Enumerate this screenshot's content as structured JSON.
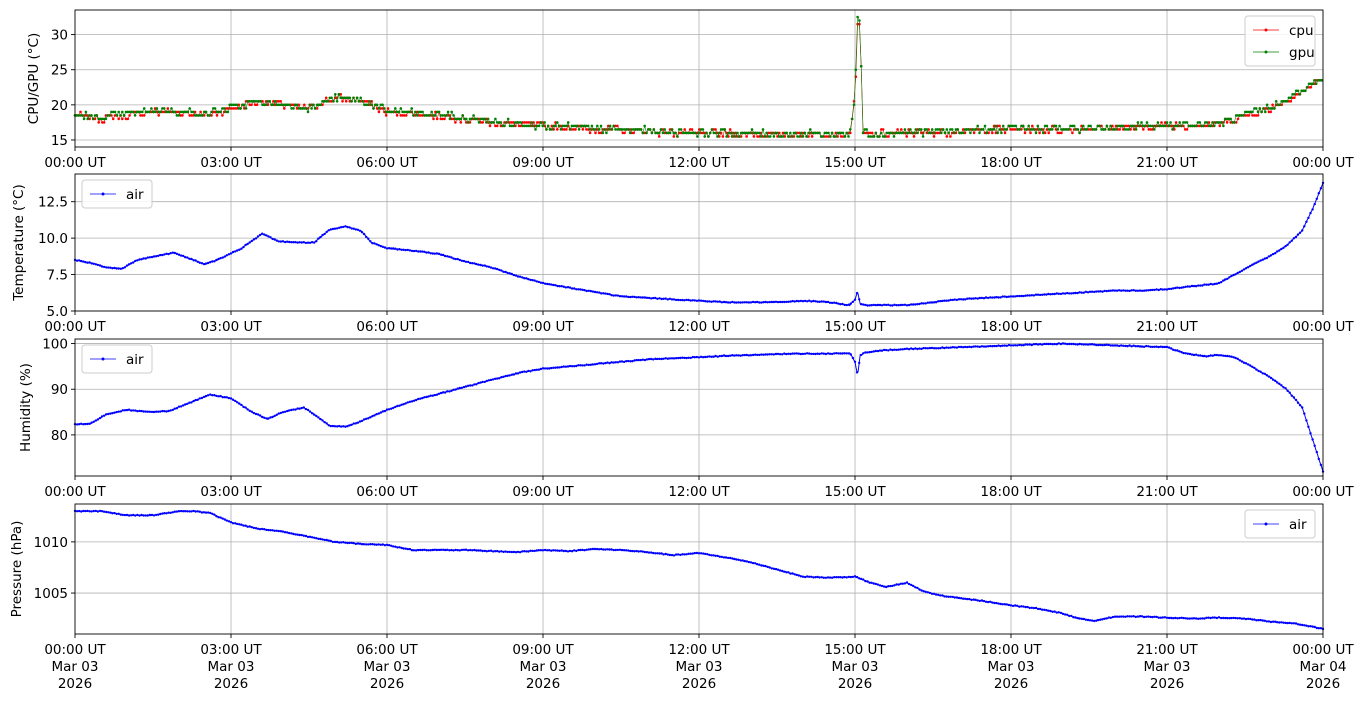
{
  "chart_data": [
    {
      "type": "line",
      "ylabel": "CPU/GPU (°C)",
      "ylim": [
        14,
        33.5
      ],
      "xlim": [
        "2026-03-03 00:00",
        "2026-03-04 00:00"
      ],
      "yticks": [
        15,
        20,
        25,
        30
      ],
      "x_tick_labels": [
        "00:00 UT",
        "03:00 UT",
        "06:00 UT",
        "09:00 UT",
        "12:00 UT",
        "15:00 UT",
        "18:00 UT",
        "21:00 UT",
        "00:00 UT"
      ],
      "grid": true,
      "legend_loc": "upper right",
      "series": [
        {
          "name": "cpu",
          "color": "#ff0000",
          "x_hours": [
            0,
            0.5,
            1,
            1.5,
            2,
            2.5,
            3,
            3.5,
            4,
            4.5,
            5,
            5.5,
            6,
            7,
            8,
            9,
            10,
            11,
            12,
            13,
            14,
            14.9,
            15.0,
            15.05,
            15.1,
            15.15,
            15.3,
            16,
            17,
            18,
            19,
            20,
            21,
            22,
            22.5,
            23,
            23.5,
            24
          ],
          "values": [
            18.6,
            18,
            18.5,
            19,
            19,
            18.5,
            19.5,
            20.5,
            20,
            19.5,
            21,
            20.5,
            19,
            18.5,
            17.5,
            17,
            16.5,
            16.2,
            16,
            15.8,
            15.8,
            15.8,
            21,
            32,
            31,
            16,
            15.8,
            16,
            16.2,
            16.5,
            16.5,
            16.7,
            17,
            17.2,
            18.5,
            19.5,
            21.5,
            23.8
          ]
        },
        {
          "name": "gpu",
          "color": "#008000",
          "x_hours": [
            0,
            0.5,
            1,
            1.5,
            2,
            2.5,
            3,
            3.5,
            4,
            4.5,
            5,
            5.5,
            6,
            7,
            8,
            9,
            10,
            11,
            12,
            13,
            14,
            14.9,
            15.0,
            15.05,
            15.1,
            15.15,
            15.3,
            16,
            17,
            18,
            19,
            20,
            21,
            22,
            22.5,
            23,
            23.5,
            24
          ],
          "values": [
            18.6,
            18.2,
            18.7,
            19.2,
            19.1,
            18.7,
            19.6,
            20.4,
            20.1,
            19.6,
            21,
            20.6,
            19.2,
            18.6,
            17.6,
            17.1,
            16.6,
            16.3,
            16.1,
            15.9,
            15.9,
            15.9,
            21.3,
            32.5,
            31.5,
            16.1,
            15.9,
            16.1,
            16.3,
            16.6,
            16.6,
            16.8,
            17.1,
            17.3,
            18.6,
            19.6,
            21.6,
            23.8
          ]
        }
      ]
    },
    {
      "type": "line",
      "ylabel": "Temperature (°C)",
      "ylim": [
        5,
        14.4
      ],
      "xlim": [
        "2026-03-03 00:00",
        "2026-03-04 00:00"
      ],
      "yticks": [
        5.0,
        7.5,
        10.0,
        12.5
      ],
      "ytick_labels": [
        "5.0",
        "7.5",
        "10.0",
        "12.5"
      ],
      "x_tick_labels": [
        "00:00 UT",
        "03:00 UT",
        "06:00 UT",
        "09:00 UT",
        "12:00 UT",
        "15:00 UT",
        "18:00 UT",
        "21:00 UT",
        "00:00 UT"
      ],
      "grid": true,
      "legend_loc": "upper left",
      "series": [
        {
          "name": "air",
          "color": "#0000ff",
          "x_hours": [
            0,
            0.3,
            0.6,
            0.9,
            1.2,
            1.6,
            1.9,
            2.2,
            2.5,
            2.8,
            3.2,
            3.6,
            3.9,
            4.2,
            4.6,
            4.9,
            5.2,
            5.5,
            5.7,
            6.0,
            6.6,
            7.0,
            7.5,
            8.0,
            8.5,
            9.0,
            9.5,
            10.0,
            10.5,
            11.0,
            11.5,
            12.0,
            12.5,
            13.0,
            13.5,
            14.0,
            14.5,
            14.9,
            15.0,
            15.05,
            15.1,
            15.2,
            15.5,
            16.0,
            16.5,
            17.0,
            17.5,
            18.0,
            18.5,
            19.0,
            19.5,
            20.0,
            20.5,
            21.0,
            21.5,
            22.0,
            22.5,
            23.0,
            23.3,
            23.6,
            23.8,
            24.0
          ],
          "values": [
            8.5,
            8.3,
            8.0,
            7.9,
            8.5,
            8.8,
            9.0,
            8.6,
            8.2,
            8.6,
            9.3,
            10.3,
            9.8,
            9.7,
            9.7,
            10.6,
            10.8,
            10.5,
            9.7,
            9.3,
            9.1,
            8.9,
            8.4,
            8.0,
            7.4,
            6.9,
            6.6,
            6.3,
            6.0,
            5.9,
            5.8,
            5.7,
            5.6,
            5.6,
            5.6,
            5.7,
            5.6,
            5.4,
            5.8,
            6.3,
            5.5,
            5.4,
            5.4,
            5.4,
            5.6,
            5.8,
            5.9,
            6.0,
            6.1,
            6.2,
            6.3,
            6.4,
            6.4,
            6.5,
            6.7,
            6.9,
            7.9,
            8.8,
            9.5,
            10.5,
            12.0,
            13.8
          ]
        }
      ]
    },
    {
      "type": "line",
      "ylabel": "Humidity (%)",
      "ylim": [
        71,
        101
      ],
      "xlim": [
        "2026-03-03 00:00",
        "2026-03-04 00:00"
      ],
      "yticks": [
        80,
        90,
        100
      ],
      "x_tick_labels": [
        "00:00 UT",
        "03:00 UT",
        "06:00 UT",
        "09:00 UT",
        "12:00 UT",
        "15:00 UT",
        "18:00 UT",
        "21:00 UT",
        "00:00 UT"
      ],
      "grid": true,
      "legend_loc": "upper left",
      "series": [
        {
          "name": "air",
          "color": "#0000ff",
          "x_hours": [
            0,
            0.3,
            0.6,
            1.0,
            1.4,
            1.8,
            2.2,
            2.6,
            3.0,
            3.4,
            3.7,
            4.0,
            4.4,
            4.6,
            4.9,
            5.2,
            5.5,
            6.0,
            6.5,
            7.0,
            7.5,
            8.0,
            8.5,
            9.0,
            9.5,
            10.0,
            10.5,
            11.0,
            11.5,
            12.0,
            12.5,
            13.0,
            13.5,
            14.0,
            14.5,
            14.9,
            15.0,
            15.05,
            15.1,
            15.2,
            15.5,
            16.0,
            16.5,
            17.0,
            17.5,
            18.0,
            18.5,
            19.0,
            19.5,
            20.0,
            20.5,
            21.0,
            21.3,
            21.7,
            22.0,
            22.3,
            22.7,
            23.0,
            23.3,
            23.6,
            23.8,
            24.0
          ],
          "values": [
            82.3,
            82.5,
            84.5,
            85.5,
            85.0,
            85.2,
            87.0,
            88.8,
            88.0,
            85.0,
            83.5,
            85.0,
            86.0,
            84.5,
            82.0,
            81.8,
            83.0,
            85.5,
            87.5,
            89.0,
            90.5,
            92.0,
            93.5,
            94.5,
            95.0,
            95.5,
            96.0,
            96.5,
            96.8,
            97.0,
            97.3,
            97.5,
            97.7,
            97.8,
            97.8,
            97.9,
            96.0,
            93.0,
            97.5,
            98.0,
            98.5,
            98.8,
            99.0,
            99.2,
            99.4,
            99.6,
            99.8,
            100.0,
            99.8,
            99.6,
            99.4,
            99.2,
            98.0,
            97.2,
            97.5,
            97.0,
            94.5,
            92.5,
            90.0,
            86.0,
            79.0,
            72.0
          ]
        }
      ]
    },
    {
      "type": "line",
      "ylabel": "Pressure (hPa)",
      "ylim": [
        1001,
        1013.7
      ],
      "xlim": [
        "2026-03-03 00:00",
        "2026-03-04 00:00"
      ],
      "yticks": [
        1005,
        1010
      ],
      "x_tick_labels": [
        "00:00 UT",
        "03:00 UT",
        "06:00 UT",
        "09:00 UT",
        "12:00 UT",
        "15:00 UT",
        "18:00 UT",
        "21:00 UT",
        "00:00 UT"
      ],
      "x_date_labels": [
        "Mar 03",
        "Mar 03",
        "Mar 03",
        "Mar 03",
        "Mar 03",
        "Mar 03",
        "Mar 03",
        "Mar 03",
        "Mar 04"
      ],
      "x_year_labels": [
        "2026",
        "2026",
        "2026",
        "2026",
        "2026",
        "2026",
        "2026",
        "2026",
        "2026"
      ],
      "grid": true,
      "legend_loc": "upper right",
      "series": [
        {
          "name": "air",
          "color": "#0000ff",
          "x_hours": [
            0,
            0.5,
            1.0,
            1.5,
            2.0,
            2.3,
            2.6,
            3.0,
            3.5,
            4.0,
            4.5,
            5.0,
            5.5,
            6.0,
            6.5,
            7.0,
            7.5,
            8.0,
            8.5,
            9.0,
            9.5,
            10.0,
            10.5,
            11.0,
            11.5,
            12.0,
            12.5,
            13.0,
            13.5,
            14.0,
            14.5,
            15.0,
            15.3,
            15.6,
            16.0,
            16.3,
            16.6,
            17.0,
            17.5,
            18.0,
            18.5,
            19.0,
            19.3,
            19.6,
            20.0,
            20.5,
            21.0,
            21.5,
            22.0,
            22.5,
            23.0,
            23.5,
            24.0
          ],
          "values": [
            1013.0,
            1013.0,
            1012.6,
            1012.6,
            1013.0,
            1013.0,
            1012.8,
            1011.9,
            1011.3,
            1011.0,
            1010.5,
            1010.0,
            1009.8,
            1009.7,
            1009.2,
            1009.2,
            1009.2,
            1009.1,
            1009.0,
            1009.2,
            1009.1,
            1009.3,
            1009.2,
            1009.0,
            1008.7,
            1008.9,
            1008.5,
            1008.0,
            1007.3,
            1006.6,
            1006.5,
            1006.6,
            1006.0,
            1005.6,
            1006.0,
            1005.2,
            1004.8,
            1004.5,
            1004.2,
            1003.8,
            1003.5,
            1003.0,
            1002.5,
            1002.3,
            1002.7,
            1002.7,
            1002.6,
            1002.5,
            1002.6,
            1002.5,
            1002.2,
            1002.0,
            1001.5
          ]
        }
      ]
    }
  ]
}
